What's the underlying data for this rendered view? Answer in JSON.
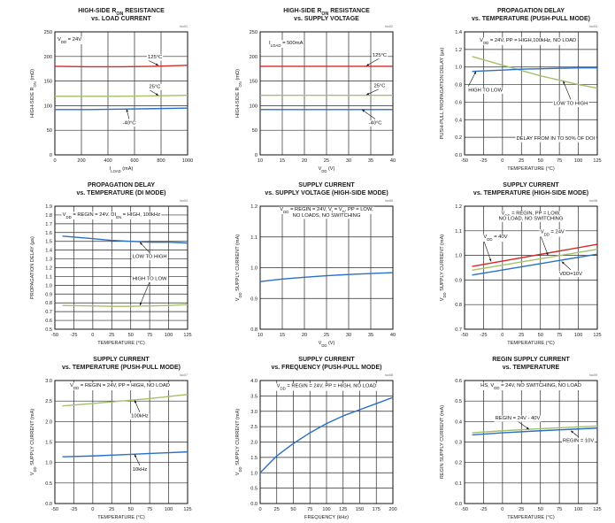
{
  "chart_data": [
    {
      "type": "line",
      "title": "HIGH-SIDE R_ON RESISTANCE",
      "subtitle": "vs. LOAD CURRENT",
      "code": "toc01",
      "xlabel": "I_LOAD (mA)",
      "ylabel": "HIGH-SIDE R_ON (mΩ)",
      "xlim": [
        0,
        1000
      ],
      "ylim": [
        0,
        250
      ],
      "xticks": [
        0,
        200,
        400,
        600,
        800,
        1000
      ],
      "yticks": [
        0,
        50,
        100,
        150,
        200,
        250
      ],
      "grid": true,
      "series": [
        {
          "name": "125°C",
          "color": "#d42a2a",
          "x": [
            0,
            250,
            500,
            750,
            1000
          ],
          "y": [
            180,
            179,
            179,
            180,
            182
          ]
        },
        {
          "name": "25°C",
          "color": "#a6c06a",
          "x": [
            0,
            250,
            500,
            750,
            1000
          ],
          "y": [
            119,
            119,
            119,
            120,
            121
          ]
        },
        {
          "name": "-40°C",
          "color": "#2a6fc4",
          "x": [
            0,
            250,
            500,
            750,
            1000
          ],
          "y": [
            92,
            92,
            93,
            94,
            95
          ]
        }
      ],
      "annotations": [
        {
          "text": "V_DD = 24V",
          "x": 20,
          "y": 232,
          "anchor": "start"
        },
        {
          "text": "125°C",
          "x": 700,
          "y": 196,
          "anchor": "start",
          "arrowTo": [
            780,
            182
          ]
        },
        {
          "text": "25°C",
          "x": 710,
          "y": 136,
          "anchor": "start",
          "arrowTo": [
            780,
            121
          ]
        },
        {
          "text": "-40°C",
          "x": 560,
          "y": 62,
          "anchor": "middle",
          "arrowTo": [
            540,
            93
          ]
        }
      ]
    },
    {
      "type": "line",
      "title": "HIGH-SIDE R_ON RESISTANCE",
      "subtitle": "vs. SUPPLY VOLTAGE",
      "code": "toc02",
      "xlabel": "V_DD (V)",
      "ylabel": "HIGH-SIDE R_ON (mΩ)",
      "xlim": [
        10,
        40
      ],
      "ylim": [
        0,
        250
      ],
      "xticks": [
        10,
        15,
        20,
        25,
        30,
        35,
        40
      ],
      "yticks": [
        0,
        50,
        100,
        150,
        200,
        250
      ],
      "grid": true,
      "series": [
        {
          "name": "125°C",
          "color": "#d42a2a",
          "x": [
            10,
            20,
            30,
            40
          ],
          "y": [
            180,
            180,
            180,
            180
          ]
        },
        {
          "name": "25°C",
          "color": "#a6c06a",
          "x": [
            10,
            20,
            30,
            40
          ],
          "y": [
            121,
            121,
            121,
            121
          ]
        },
        {
          "name": "-40°C",
          "color": "#2a6fc4",
          "x": [
            10,
            20,
            30,
            40
          ],
          "y": [
            92,
            92,
            92,
            92
          ]
        }
      ],
      "annotations": [
        {
          "text": "I_LOAD = 500mA",
          "x": 12,
          "y": 225,
          "anchor": "start"
        },
        {
          "text": "125°C",
          "x": 37,
          "y": 200,
          "anchor": "middle",
          "arrowTo": [
            34,
            181
          ]
        },
        {
          "text": "25°C",
          "x": 37,
          "y": 138,
          "anchor": "middle",
          "arrowTo": [
            34,
            122
          ]
        },
        {
          "text": "-40°C",
          "x": 36,
          "y": 62,
          "anchor": "middle",
          "arrowTo": [
            33,
            92
          ]
        }
      ]
    },
    {
      "type": "line",
      "title": "PROPAGATION DELAY",
      "subtitle": "vs. TEMPERATURE (PUSH-PULL MODE)",
      "code": "toc03",
      "xlabel": "TEMPERATURE (°C)",
      "ylabel": "PUSH-PULL PROPAGATION DELAY (µs)",
      "xlim": [
        -50,
        125
      ],
      "ylim": [
        0,
        1.4
      ],
      "xticks": [
        -50,
        -25,
        0,
        25,
        50,
        75,
        100,
        125
      ],
      "yticks": [
        0,
        0.2,
        0.4,
        0.6,
        0.8,
        1.0,
        1.2,
        1.4
      ],
      "ytickfmt": 1,
      "grid": true,
      "series": [
        {
          "name": "HIGH TO LOW",
          "color": "#a6c06a",
          "x": [
            -40,
            0,
            25,
            50,
            75,
            100,
            125
          ],
          "y": [
            1.12,
            1.02,
            0.96,
            0.9,
            0.85,
            0.8,
            0.76
          ]
        },
        {
          "name": "LOW TO HIGH",
          "color": "#2a6fc4",
          "x": [
            -40,
            0,
            25,
            50,
            75,
            100,
            125
          ],
          "y": [
            0.95,
            0.965,
            0.975,
            0.98,
            0.985,
            0.99,
            0.99
          ]
        }
      ],
      "annotations": [
        {
          "text": "V_DD = 24V, PP = HIGH,100kHz, NO LOAD",
          "x": -30,
          "y": 1.29,
          "anchor": "start"
        },
        {
          "text": "HIGH TO LOW",
          "x": -45,
          "y": 0.72,
          "anchor": "start",
          "arrowTo": [
            -35,
            0.95
          ]
        },
        {
          "text": "LOW TO HIGH",
          "x": 90,
          "y": 0.57,
          "anchor": "middle",
          "arrowTo": [
            80,
            0.84
          ]
        },
        {
          "text": "DELAY FROM IN TO 50% OF DOI",
          "x": 70,
          "y": 0.17,
          "anchor": "middle"
        }
      ]
    },
    {
      "type": "line",
      "title": "PROPAGATION DELAY",
      "subtitle": "vs. TEMPERATURE (DI MODE)",
      "code": "toc04",
      "xlabel": "TEMPERATURE (°C)",
      "ylabel": "PROPAGATION DELAY (µs)",
      "xlim": [
        -50,
        125
      ],
      "ylim": [
        0.5,
        1.9
      ],
      "xticks": [
        -50,
        -25,
        0,
        25,
        50,
        75,
        100,
        125
      ],
      "yticks": [
        0.5,
        0.6,
        0.7,
        0.8,
        0.9,
        1.0,
        1.1,
        1.2,
        1.3,
        1.4,
        1.5,
        1.6,
        1.7,
        1.8,
        1.9
      ],
      "ytickfmt": 1,
      "grid": true,
      "series": [
        {
          "name": "LOW TO HIGH",
          "color": "#2a6fc4",
          "x": [
            -40,
            0,
            25,
            50,
            75,
            100,
            125
          ],
          "y": [
            1.56,
            1.53,
            1.51,
            1.5,
            1.49,
            1.49,
            1.48
          ]
        },
        {
          "name": "HIGH TO LOW",
          "color": "#a6c06a",
          "x": [
            -40,
            0,
            25,
            50,
            75,
            100,
            125
          ],
          "y": [
            0.77,
            0.765,
            0.76,
            0.76,
            0.765,
            0.77,
            0.78
          ]
        }
      ],
      "annotations": [
        {
          "text": "V_DD = REGIN = 24V, DI_EN = HIGH, 100kHz",
          "x": -40,
          "y": 1.79,
          "anchor": "start"
        },
        {
          "text": "LOW TO HIGH",
          "x": 75,
          "y": 1.31,
          "anchor": "middle",
          "arrowTo": [
            62,
            1.49
          ]
        },
        {
          "text": "HIGH TO LOW",
          "x": 75,
          "y": 1.06,
          "anchor": "middle",
          "arrowTo": [
            62,
            0.77
          ]
        }
      ]
    },
    {
      "type": "line",
      "title": "SUPPLY CURRENT",
      "subtitle": "vs. SUPPLY VOLTAGE (HIGH-SIDE MODE)",
      "code": "toc05",
      "xlabel": "V_DD (V)",
      "ylabel": "V_DD SUPPLY CURRENT (mA)",
      "xlim": [
        10,
        40
      ],
      "ylim": [
        0.8,
        1.2
      ],
      "xticks": [
        10,
        15,
        20,
        25,
        30,
        35,
        40
      ],
      "yticks": [
        0.8,
        0.9,
        1.0,
        1.1,
        1.2
      ],
      "ytickfmt": 1,
      "grid": true,
      "series": [
        {
          "color": "#2a6fc4",
          "x": [
            10,
            15,
            20,
            25,
            30,
            35,
            40
          ],
          "y": [
            0.955,
            0.963,
            0.969,
            0.974,
            0.978,
            0.981,
            0.984
          ]
        }
      ],
      "annotations": [
        {
          "text": "V_DD = REGIN = 24V, V_I = V_D, PP = LOW,",
          "x": 25,
          "y": 1.186,
          "anchor": "middle"
        },
        {
          "text": "NO LOADS, NO SWITCHING",
          "x": 25,
          "y": 1.166,
          "anchor": "middle"
        }
      ]
    },
    {
      "type": "line",
      "title": "SUPPLY CURRENT",
      "subtitle": "vs. TEMPERATURE (HIGH-SIDE MODE)",
      "code": "toc06",
      "xlabel": "TEMPERATURE (°C)",
      "ylabel": "V_DD SUPPLY CURRENT (mA)",
      "xlim": [
        -50,
        125
      ],
      "ylim": [
        0.7,
        1.2
      ],
      "xticks": [
        -50,
        -25,
        0,
        25,
        50,
        75,
        100,
        125
      ],
      "yticks": [
        0.7,
        0.8,
        0.9,
        1.0,
        1.1,
        1.2
      ],
      "ytickfmt": 1,
      "grid": true,
      "series": [
        {
          "name": "V_DD = 40V",
          "color": "#d42a2a",
          "x": [
            -40,
            125
          ],
          "y": [
            0.955,
            1.045
          ]
        },
        {
          "name": "V_DD = 24V",
          "color": "#a6c06a",
          "x": [
            -40,
            125
          ],
          "y": [
            0.94,
            1.025
          ]
        },
        {
          "name": "VDD=10V",
          "color": "#2a6fc4",
          "x": [
            -40,
            125
          ],
          "y": [
            0.92,
            1.005
          ]
        }
      ],
      "annotations": [
        {
          "text": "V_DD = REGIN, PP = LOW,",
          "x": 37.5,
          "y": 1.165,
          "anchor": "middle"
        },
        {
          "text": "NO LOAD, NO SWITCHING",
          "x": 37.5,
          "y": 1.145,
          "anchor": "middle"
        },
        {
          "text": "V_DD = 40V",
          "x": -25,
          "y": 1.07,
          "anchor": "start",
          "arrowTo": [
            -15,
            0.975
          ]
        },
        {
          "text": "V_DD = 24V",
          "x": 50,
          "y": 1.09,
          "anchor": "start",
          "arrowTo": [
            60,
            1.0
          ]
        },
        {
          "text": "VDD=10V",
          "x": 90,
          "y": 0.92,
          "anchor": "middle",
          "arrowTo": [
            78,
            0.975
          ]
        }
      ]
    },
    {
      "type": "line",
      "title": "SUPPLY CURRENT",
      "subtitle": "vs. TEMPERATURE (PUSH-PULL MODE)",
      "code": "toc07",
      "xlabel": "TEMPERATURE (°C)",
      "ylabel": "V_DD SUPPLY CURRENT (mA)",
      "xlim": [
        -50,
        125
      ],
      "ylim": [
        0,
        3.0
      ],
      "xticks": [
        -50,
        -25,
        0,
        25,
        50,
        75,
        100,
        125
      ],
      "yticks": [
        0,
        0.5,
        1.0,
        1.5,
        2.0,
        2.5,
        3.0
      ],
      "ytickfmt": 1,
      "grid": true,
      "series": [
        {
          "name": "100kHz",
          "color": "#a6c06a",
          "x": [
            -40,
            0,
            25,
            50,
            75,
            100,
            125
          ],
          "y": [
            2.38,
            2.44,
            2.48,
            2.52,
            2.56,
            2.61,
            2.66
          ]
        },
        {
          "name": "10kHz",
          "color": "#2a6fc4",
          "x": [
            -40,
            0,
            25,
            50,
            75,
            100,
            125
          ],
          "y": [
            1.14,
            1.16,
            1.18,
            1.2,
            1.22,
            1.24,
            1.26
          ]
        }
      ],
      "annotations": [
        {
          "text": "V_DD = REGIN = 24V, PP = HIGH, NO LOAD",
          "x": -30,
          "y": 2.85,
          "anchor": "start"
        },
        {
          "text": "100kHz",
          "x": 62,
          "y": 2.1,
          "anchor": "middle",
          "arrowTo": [
            55,
            2.52
          ]
        },
        {
          "text": "10kHz",
          "x": 62,
          "y": 0.8,
          "anchor": "middle",
          "arrowTo": [
            55,
            1.2
          ]
        }
      ]
    },
    {
      "type": "line",
      "title": "SUPPLY CURRENT",
      "subtitle": "vs. FREQUENCY (PUSH-PULL MODE)",
      "code": "toc08",
      "xlabel": "FREQUENCY (kHz)",
      "ylabel": "V_DD SUPPLY CURRENT (mA)",
      "xlim": [
        0,
        200
      ],
      "ylim": [
        0,
        4.0
      ],
      "xticks": [
        0,
        25,
        50,
        75,
        100,
        125,
        150,
        175,
        200
      ],
      "yticks": [
        0,
        0.5,
        1.0,
        1.5,
        2.0,
        2.5,
        3.0,
        3.5,
        4.0
      ],
      "ytickfmt": 1,
      "grid": true,
      "series": [
        {
          "color": "#2a6fc4",
          "x": [
            0,
            25,
            50,
            75,
            100,
            125,
            150,
            175,
            200
          ],
          "y": [
            1.0,
            1.55,
            1.95,
            2.3,
            2.6,
            2.85,
            3.05,
            3.25,
            3.45
          ]
        }
      ],
      "annotations": [
        {
          "text": "V_DD = REGIN = 24V, PP = HIGH, NO LOAD",
          "x": 100,
          "y": 3.78,
          "anchor": "middle"
        }
      ]
    },
    {
      "type": "line",
      "title": "REGIN SUPPLY CURRENT",
      "subtitle": "vs. TEMPERATURE",
      "code": "toc09",
      "xlabel": "TEMPERATURE (°C)",
      "ylabel": "REGIN SUPPLY CURRENT (mA)",
      "xlim": [
        -50,
        125
      ],
      "ylim": [
        0,
        0.6
      ],
      "xticks": [
        -50,
        -25,
        0,
        25,
        50,
        75,
        100,
        125
      ],
      "yticks": [
        0,
        0.1,
        0.2,
        0.3,
        0.4,
        0.5,
        0.6
      ],
      "ytickfmt": 1,
      "grid": true,
      "series": [
        {
          "name": "REGIN = 24V - 40V",
          "color": "#a6c06a",
          "x": [
            -40,
            0,
            50,
            125
          ],
          "y": [
            0.345,
            0.355,
            0.365,
            0.378
          ]
        },
        {
          "name": "REGIN = 10V",
          "color": "#2a6fc4",
          "x": [
            -40,
            0,
            50,
            125
          ],
          "y": [
            0.335,
            0.345,
            0.355,
            0.368
          ]
        }
      ],
      "annotations": [
        {
          "text": "HS, V_DD = 24V, NO SWITCHING, NO LOAD",
          "x": 37.5,
          "y": 0.57,
          "anchor": "middle"
        },
        {
          "text": "REGIN = 24V - 40V",
          "x": 20,
          "y": 0.41,
          "anchor": "middle",
          "arrowTo": [
            35,
            0.362
          ]
        },
        {
          "text": "REGIN = 10V",
          "x": 100,
          "y": 0.3,
          "anchor": "middle",
          "arrowTo": [
            90,
            0.355
          ]
        }
      ]
    }
  ]
}
